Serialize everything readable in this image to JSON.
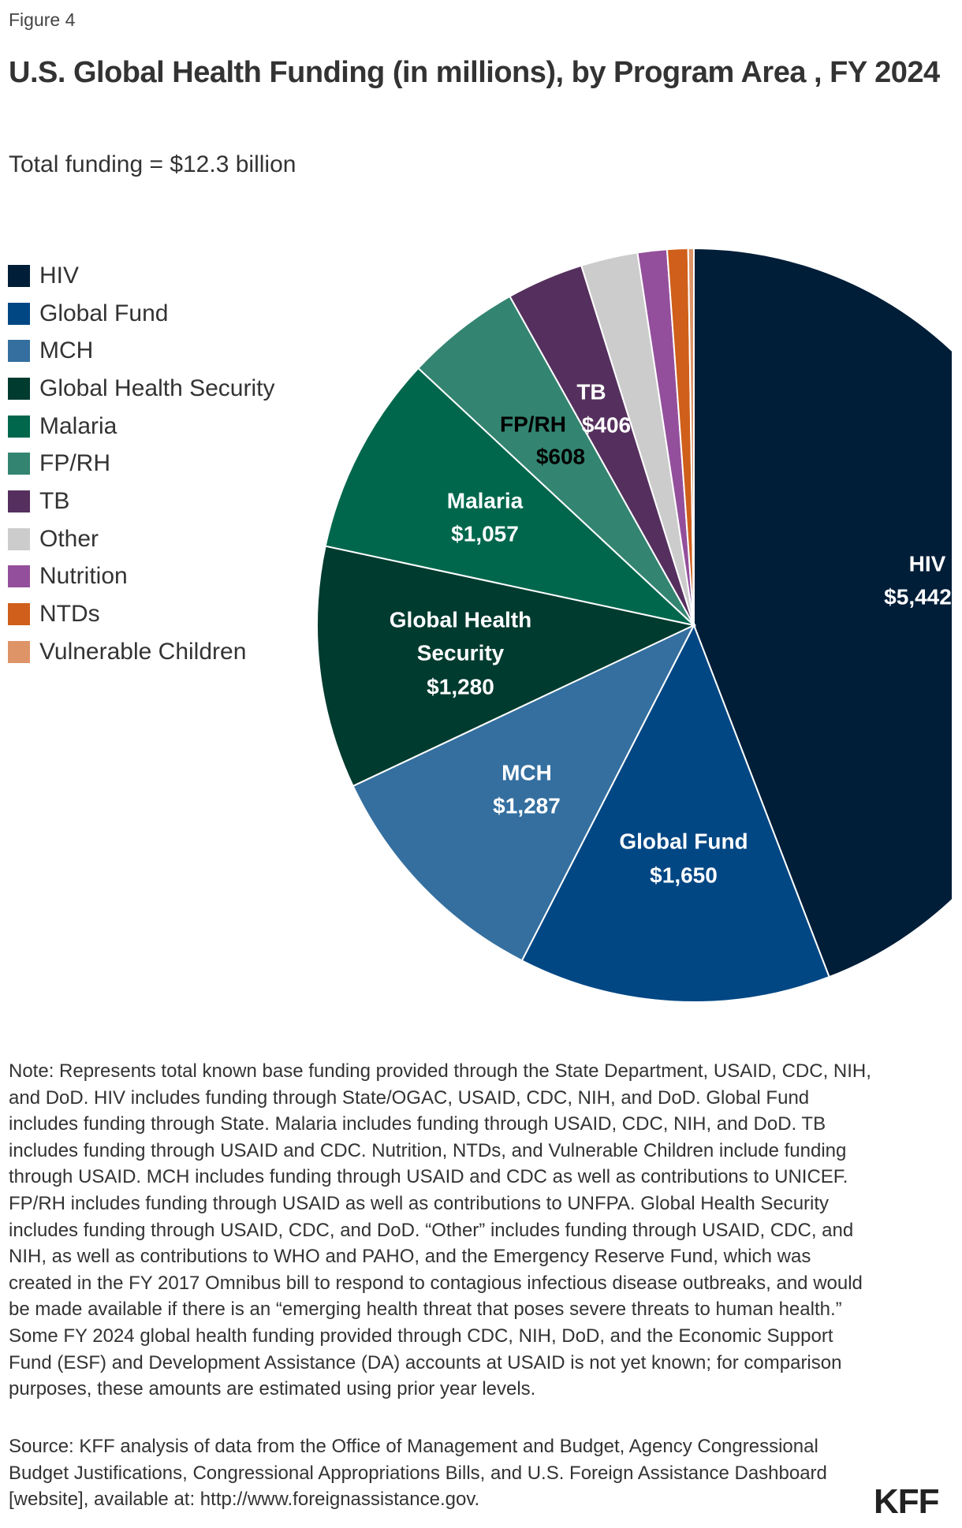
{
  "figure_label": "Figure 4",
  "chart_data": {
    "type": "pie",
    "title": "U.S. Global Health Funding (in millions), by Program Area , FY 2024",
    "subtitle": "Total funding = $12.3 billion",
    "legend_placement": "left",
    "start": "12 o'clock, clockwise",
    "slices": [
      {
        "name": "HIV",
        "value": 5442,
        "label": "$5,442",
        "color": "#001e38",
        "label_color": "#ffffff"
      },
      {
        "name": "Global Fund",
        "value": 1650,
        "label": "$1,650",
        "color": "#004784",
        "label_color": "#ffffff"
      },
      {
        "name": "MCH",
        "value": 1287,
        "label": "$1,287",
        "color": "#346f9f",
        "label_color": "#ffffff"
      },
      {
        "name": "Global Health Security",
        "value": 1280,
        "label": "$1,280",
        "color": "#003b2f",
        "label_color": "#ffffff",
        "label_lines": [
          "Global Health",
          "Security"
        ]
      },
      {
        "name": "Malaria",
        "value": 1057,
        "label": "$1,057",
        "color": "#00674d",
        "label_color": "#ffffff"
      },
      {
        "name": "FP/RH",
        "value": 608,
        "label": "$608",
        "color": "#338571",
        "label_color": "#000000"
      },
      {
        "name": "TB",
        "value": 406,
        "label": "$406",
        "color": "#55305e",
        "label_color": "#ffffff"
      },
      {
        "name": "Other",
        "value": 300,
        "color": "#cccccc"
      },
      {
        "name": "Nutrition",
        "value": 155,
        "color": "#934f9c"
      },
      {
        "name": "NTDs",
        "value": 110,
        "color": "#cf5f1a"
      },
      {
        "name": "Vulnerable Children",
        "value": 30,
        "color": "#de9467"
      }
    ]
  },
  "note": "Note: Represents total known base funding provided through the State Department, USAID, CDC, NIH, and DoD. HIV includes funding through State/OGAC, USAID, CDC, NIH, and DoD. Global Fund includes funding through State. Malaria includes funding through USAID, CDC, NIH, and DoD. TB includes funding through USAID and CDC. Nutrition, NTDs, and Vulnerable Children include funding through USAID. MCH includes funding through USAID and CDC as well as contributions to UNICEF. FP/RH includes funding through USAID as well as contributions to UNFPA. Global Health Security includes funding through USAID, CDC, and DoD. “Other” includes funding through USAID, CDC, and NIH, as well as contributions to WHO and PAHO, and the Emergency Reserve Fund, which was created in the FY 2017 Omnibus bill to respond to contagious infectious disease outbreaks, and would be made available if there is an “emerging health threat that poses severe threats to human health.” Some FY 2024 global health funding provided through CDC, NIH, DoD, and the Economic Support Fund (ESF) and Development Assistance (DA) accounts at USAID is not yet known; for comparison purposes, these amounts are estimated using prior year levels.",
  "source": "Source: KFF analysis of data from the Office of Management and Budget, Agency Congressional Budget Justifications, Congressional Appropriations Bills, and U.S. Foreign Assistance Dashboard [website], available at: http://www.foreignassistance.gov.",
  "logo": "KFF"
}
